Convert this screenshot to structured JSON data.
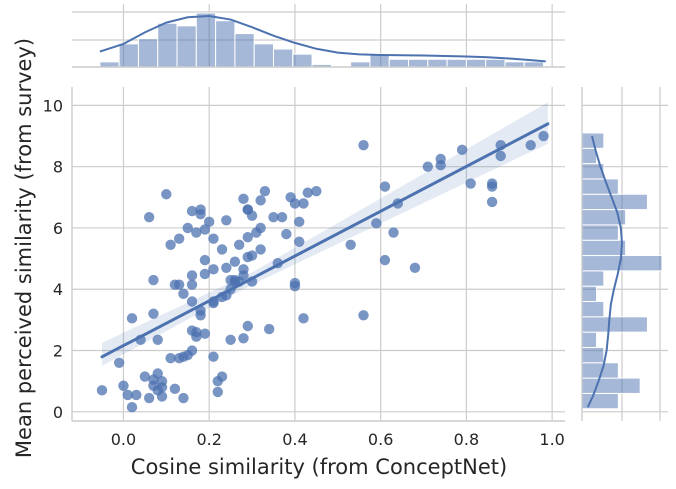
{
  "chart_data": {
    "type": "scatter",
    "kind": "jointplot",
    "xlabel": "Cosine similarity (from ConceptNet)",
    "ylabel": "Mean perceived similarity (from survey)",
    "xlim": [
      -0.12,
      1.03
    ],
    "ylim": [
      -0.3,
      10.6
    ],
    "xticks": [
      0.0,
      0.2,
      0.4,
      0.6,
      0.8,
      1.0
    ],
    "xtick_labels": [
      "0.0",
      "0.2",
      "0.4",
      "0.6",
      "0.8",
      "1.0"
    ],
    "yticks": [
      0,
      2,
      4,
      6,
      8,
      10
    ],
    "ytick_labels": [
      "0",
      "2",
      "4",
      "6",
      "8",
      "10"
    ],
    "grid": true,
    "regression": {
      "slope": 7.31,
      "intercept": 2.16,
      "x_range": [
        -0.05,
        0.99
      ],
      "ci_lower": [
        [
          -0.05,
          1.5
        ],
        [
          0.3,
          4.15
        ],
        [
          0.99,
          8.75
        ]
      ],
      "ci_upper": [
        [
          -0.05,
          2.25
        ],
        [
          0.3,
          4.55
        ],
        [
          0.99,
          10.1
        ]
      ]
    },
    "points": [
      [
        -0.05,
        0.7
      ],
      [
        -0.01,
        1.6
      ],
      [
        0.0,
        0.85
      ],
      [
        0.01,
        0.55
      ],
      [
        0.02,
        0.15
      ],
      [
        0.02,
        3.05
      ],
      [
        0.03,
        0.55
      ],
      [
        0.04,
        2.35
      ],
      [
        0.05,
        1.15
      ],
      [
        0.06,
        0.45
      ],
      [
        0.06,
        6.35
      ],
      [
        0.07,
        0.85
      ],
      [
        0.07,
        1.05
      ],
      [
        0.07,
        3.2
      ],
      [
        0.07,
        4.3
      ],
      [
        0.08,
        0.7
      ],
      [
        0.08,
        1.25
      ],
      [
        0.08,
        2.35
      ],
      [
        0.09,
        0.5
      ],
      [
        0.09,
        0.8
      ],
      [
        0.09,
        1.0
      ],
      [
        0.11,
        5.45
      ],
      [
        0.1,
        7.1
      ],
      [
        0.11,
        1.75
      ],
      [
        0.12,
        0.75
      ],
      [
        0.12,
        4.15
      ],
      [
        0.13,
        1.75
      ],
      [
        0.13,
        4.15
      ],
      [
        0.13,
        5.65
      ],
      [
        0.14,
        1.8
      ],
      [
        0.14,
        0.45
      ],
      [
        0.14,
        3.85
      ],
      [
        0.15,
        1.85
      ],
      [
        0.15,
        6.0
      ],
      [
        0.16,
        2.0
      ],
      [
        0.16,
        3.6
      ],
      [
        0.16,
        4.45
      ],
      [
        0.16,
        4.15
      ],
      [
        0.16,
        6.55
      ],
      [
        0.16,
        2.65
      ],
      [
        0.17,
        2.6
      ],
      [
        0.17,
        2.45
      ],
      [
        0.17,
        5.85
      ],
      [
        0.18,
        3.3
      ],
      [
        0.18,
        3.15
      ],
      [
        0.18,
        6.45
      ],
      [
        0.18,
        6.6
      ],
      [
        0.19,
        2.55
      ],
      [
        0.19,
        4.95
      ],
      [
        0.19,
        4.5
      ],
      [
        0.19,
        5.95
      ],
      [
        0.2,
        6.2
      ],
      [
        0.21,
        3.55
      ],
      [
        0.21,
        3.6
      ],
      [
        0.21,
        4.65
      ],
      [
        0.21,
        5.65
      ],
      [
        0.21,
        1.8
      ],
      [
        0.22,
        0.65
      ],
      [
        0.22,
        1.0
      ],
      [
        0.23,
        1.15
      ],
      [
        0.23,
        3.75
      ],
      [
        0.23,
        5.3
      ],
      [
        0.24,
        3.8
      ],
      [
        0.24,
        4.7
      ],
      [
        0.24,
        6.25
      ],
      [
        0.25,
        4.3
      ],
      [
        0.25,
        4.0
      ],
      [
        0.25,
        2.35
      ],
      [
        0.26,
        4.3
      ],
      [
        0.26,
        4.9
      ],
      [
        0.26,
        4.25
      ],
      [
        0.27,
        4.25
      ],
      [
        0.27,
        5.45
      ],
      [
        0.28,
        6.95
      ],
      [
        0.28,
        4.45
      ],
      [
        0.28,
        4.65
      ],
      [
        0.28,
        2.4
      ],
      [
        0.29,
        6.6
      ],
      [
        0.29,
        2.8
      ],
      [
        0.29,
        6.6
      ],
      [
        0.29,
        5.05
      ],
      [
        0.29,
        5.7
      ],
      [
        0.3,
        6.4
      ],
      [
        0.3,
        5.1
      ],
      [
        0.3,
        4.25
      ],
      [
        0.31,
        5.85
      ],
      [
        0.32,
        6.9
      ],
      [
        0.32,
        6.0
      ],
      [
        0.32,
        5.3
      ],
      [
        0.33,
        7.2
      ],
      [
        0.34,
        2.7
      ],
      [
        0.35,
        6.35
      ],
      [
        0.36,
        4.85
      ],
      [
        0.37,
        6.35
      ],
      [
        0.38,
        5.8
      ],
      [
        0.39,
        7.0
      ],
      [
        0.4,
        6.8
      ],
      [
        0.4,
        4.1
      ],
      [
        0.4,
        4.2
      ],
      [
        0.41,
        5.55
      ],
      [
        0.41,
        6.2
      ],
      [
        0.42,
        3.05
      ],
      [
        0.42,
        6.8
      ],
      [
        0.43,
        7.15
      ],
      [
        0.45,
        7.2
      ],
      [
        0.53,
        5.45
      ],
      [
        0.56,
        3.15
      ],
      [
        0.56,
        8.7
      ],
      [
        0.59,
        6.15
      ],
      [
        0.61,
        4.95
      ],
      [
        0.61,
        7.35
      ],
      [
        0.63,
        5.85
      ],
      [
        0.64,
        6.8
      ],
      [
        0.68,
        4.7
      ],
      [
        0.71,
        8.0
      ],
      [
        0.74,
        8.05
      ],
      [
        0.74,
        8.25
      ],
      [
        0.79,
        8.55
      ],
      [
        0.81,
        7.45
      ],
      [
        0.86,
        7.45
      ],
      [
        0.86,
        7.35
      ],
      [
        0.86,
        6.85
      ],
      [
        0.88,
        8.7
      ],
      [
        0.88,
        8.35
      ],
      [
        0.95,
        8.7
      ],
      [
        0.98,
        9.0
      ]
    ],
    "marginal_x": {
      "bin_edges": [
        -0.055,
        -0.01,
        0.035,
        0.08,
        0.125,
        0.17,
        0.215,
        0.26,
        0.305,
        0.35,
        0.395,
        0.44,
        0.485,
        0.53,
        0.575,
        0.62,
        0.665,
        0.71,
        0.755,
        0.8,
        0.845,
        0.89,
        0.935,
        0.98
      ],
      "counts": [
        2,
        9,
        11,
        17,
        16,
        21,
        18,
        13,
        9,
        7,
        5,
        1,
        0,
        2,
        5,
        3,
        3,
        3,
        3,
        3,
        3,
        2,
        2
      ],
      "kde_x": [
        -0.055,
        0.0,
        0.05,
        0.1,
        0.15,
        0.2,
        0.25,
        0.3,
        0.35,
        0.4,
        0.45,
        0.5,
        0.55,
        0.6,
        0.65,
        0.7,
        0.75,
        0.8,
        0.85,
        0.9,
        0.95,
        0.985
      ],
      "kde_y": [
        6,
        9,
        13.5,
        17.3,
        19.4,
        19.9,
        18.5,
        15.5,
        12.2,
        9.4,
        7.1,
        5.6,
        4.9,
        4.7,
        4.6,
        4.5,
        4.3,
        4.1,
        3.8,
        3.3,
        2.7,
        2.2
      ]
    },
    "marginal_y": {
      "bin_edges": [
        0.1,
        0.6,
        1.1,
        1.6,
        2.1,
        2.6,
        3.1,
        3.6,
        4.1,
        4.6,
        5.1,
        5.6,
        6.1,
        6.6,
        7.1,
        7.6,
        8.1,
        8.6,
        9.1
      ],
      "counts": [
        5,
        8,
        5,
        3,
        2,
        9,
        3,
        2,
        3,
        11,
        6,
        5,
        6,
        9,
        5,
        3,
        2,
        3
      ],
      "kde_y": [
        0.15,
        0.5,
        1.0,
        1.5,
        2.0,
        2.5,
        3.0,
        3.5,
        4.0,
        4.5,
        5.0,
        5.5,
        6.0,
        6.5,
        7.0,
        7.5,
        8.0,
        8.5,
        9.0
      ],
      "kde_x": [
        1.5,
        2.8,
        4.3,
        5.6,
        6.4,
        6.8,
        7.1,
        7.5,
        8.3,
        9.3,
        10.1,
        10.4,
        10.1,
        9.2,
        7.7,
        6.2,
        4.8,
        3.6,
        2.6
      ]
    }
  }
}
